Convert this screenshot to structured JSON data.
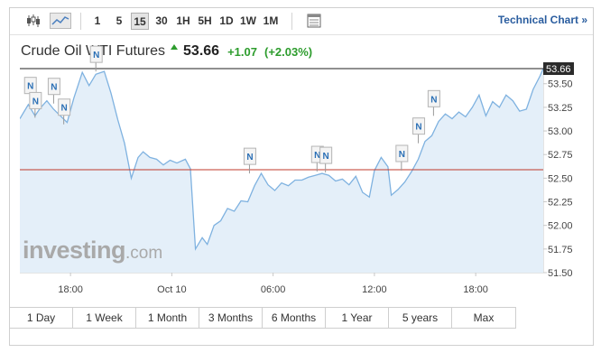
{
  "toolbar": {
    "intervals": [
      "1",
      "5",
      "15",
      "30",
      "1H",
      "5H",
      "1D",
      "1W",
      "1M"
    ],
    "active_interval": "15",
    "technical_chart_label": "Technical Chart »",
    "icons": [
      "candlestick-icon",
      "area-chart-icon",
      "table-view-icon"
    ]
  },
  "instrument": {
    "name": "Crude Oil WTI Futures",
    "last": "53.66",
    "change": "+1.07",
    "change_pct": "(+2.03%)",
    "direction_icon": "arrow-up-icon"
  },
  "watermark": {
    "brand": "investing",
    "suffix": ".com"
  },
  "ranges": [
    "1 Day",
    "1 Week",
    "1 Month",
    "3 Months",
    "6 Months",
    "1 Year",
    "5 years",
    "Max"
  ],
  "colors": {
    "line": "#7fb2e0",
    "fill": "#e4eff9",
    "prev_close": "#c0392b",
    "current_line": "#222222",
    "positive": "#2d9c2d",
    "news_marker": "#2a6fb5",
    "link": "#2a5d9f"
  },
  "chart_data": {
    "type": "area",
    "y_tick_labels": [
      "53.50",
      "53.25",
      "53.00",
      "52.75",
      "52.50",
      "52.25",
      "52.00",
      "51.75",
      "51.50"
    ],
    "y_ticks": [
      53.5,
      53.25,
      53.0,
      52.75,
      52.5,
      52.25,
      52.0,
      51.75,
      51.5
    ],
    "x_tick_labels": [
      "18:00",
      "Oct 10",
      "06:00",
      "12:00",
      "18:00"
    ],
    "x_ticks": [
      3.0,
      9.0,
      15.0,
      21.0,
      27.0
    ],
    "ylim": [
      51.5,
      53.66
    ],
    "xlim": [
      0.0,
      31.0
    ],
    "current_value": 53.66,
    "current_label": "53.66",
    "previous_close": 52.59,
    "news_marker_label": "N",
    "news_markers": [
      {
        "x": 0.6,
        "y": 53.3
      },
      {
        "x": 0.9,
        "y": 53.14
      },
      {
        "x": 2.0,
        "y": 53.29
      },
      {
        "x": 2.6,
        "y": 53.07
      },
      {
        "x": 4.5,
        "y": 53.63
      },
      {
        "x": 13.6,
        "y": 52.55
      },
      {
        "x": 17.6,
        "y": 52.57
      },
      {
        "x": 18.1,
        "y": 52.56
      },
      {
        "x": 22.6,
        "y": 52.58
      },
      {
        "x": 23.6,
        "y": 52.87
      },
      {
        "x": 24.5,
        "y": 53.16
      }
    ],
    "series": [
      {
        "values": [
          [
            0.0,
            53.13
          ],
          [
            0.5,
            53.28
          ],
          [
            0.9,
            53.16
          ],
          [
            1.2,
            53.24
          ],
          [
            1.6,
            53.32
          ],
          [
            2.0,
            53.23
          ],
          [
            2.4,
            53.16
          ],
          [
            2.8,
            53.09
          ],
          [
            3.2,
            53.35
          ],
          [
            3.7,
            53.62
          ],
          [
            4.1,
            53.48
          ],
          [
            4.5,
            53.6
          ],
          [
            5.0,
            53.63
          ],
          [
            5.4,
            53.4
          ],
          [
            5.8,
            53.12
          ],
          [
            6.2,
            52.87
          ],
          [
            6.6,
            52.5
          ],
          [
            7.0,
            52.72
          ],
          [
            7.3,
            52.78
          ],
          [
            7.7,
            52.72
          ],
          [
            8.1,
            52.7
          ],
          [
            8.5,
            52.64
          ],
          [
            8.9,
            52.69
          ],
          [
            9.3,
            52.66
          ],
          [
            9.8,
            52.7
          ],
          [
            10.1,
            52.6
          ],
          [
            10.4,
            51.75
          ],
          [
            10.8,
            51.87
          ],
          [
            11.1,
            51.8
          ],
          [
            11.5,
            52.0
          ],
          [
            11.9,
            52.05
          ],
          [
            12.3,
            52.18
          ],
          [
            12.7,
            52.15
          ],
          [
            13.1,
            52.26
          ],
          [
            13.5,
            52.25
          ],
          [
            13.9,
            52.42
          ],
          [
            14.3,
            52.55
          ],
          [
            14.7,
            52.43
          ],
          [
            15.1,
            52.37
          ],
          [
            15.5,
            52.45
          ],
          [
            15.9,
            52.42
          ],
          [
            16.3,
            52.48
          ],
          [
            16.7,
            52.48
          ],
          [
            17.1,
            52.51
          ],
          [
            17.5,
            52.53
          ],
          [
            17.9,
            52.55
          ],
          [
            18.3,
            52.53
          ],
          [
            18.7,
            52.47
          ],
          [
            19.1,
            52.49
          ],
          [
            19.5,
            52.43
          ],
          [
            19.9,
            52.52
          ],
          [
            20.3,
            52.35
          ],
          [
            20.7,
            52.3
          ],
          [
            21.0,
            52.58
          ],
          [
            21.4,
            52.72
          ],
          [
            21.8,
            52.62
          ],
          [
            22.0,
            52.32
          ],
          [
            22.4,
            52.38
          ],
          [
            22.8,
            52.46
          ],
          [
            23.2,
            52.57
          ],
          [
            23.6,
            52.7
          ],
          [
            24.0,
            52.89
          ],
          [
            24.4,
            52.95
          ],
          [
            24.8,
            53.1
          ],
          [
            25.2,
            53.18
          ],
          [
            25.6,
            53.13
          ],
          [
            26.0,
            53.2
          ],
          [
            26.4,
            53.15
          ],
          [
            26.8,
            53.25
          ],
          [
            27.2,
            53.38
          ],
          [
            27.6,
            53.16
          ],
          [
            28.0,
            53.31
          ],
          [
            28.4,
            53.25
          ],
          [
            28.8,
            53.38
          ],
          [
            29.2,
            53.32
          ],
          [
            29.6,
            53.21
          ],
          [
            30.0,
            53.23
          ],
          [
            30.4,
            53.44
          ],
          [
            30.8,
            53.58
          ],
          [
            31.0,
            53.66
          ]
        ]
      }
    ]
  }
}
